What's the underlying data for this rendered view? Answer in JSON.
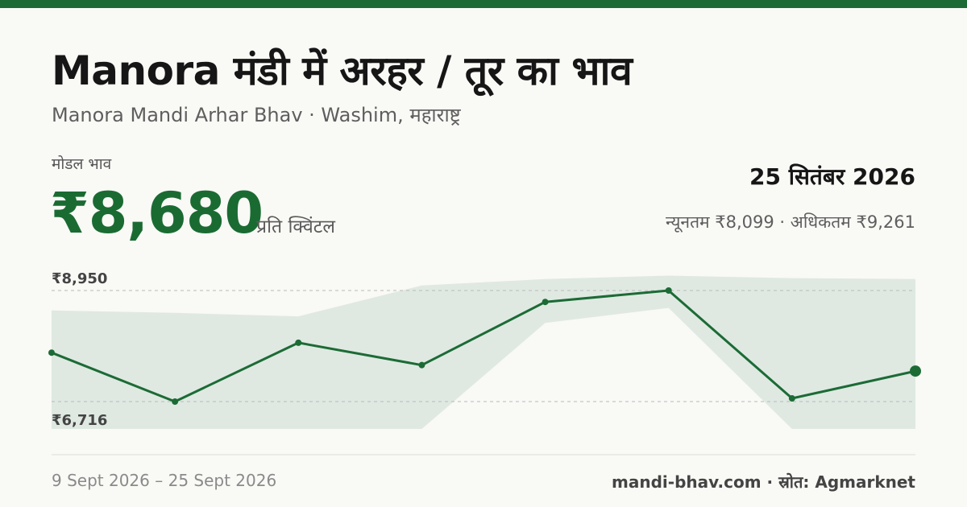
{
  "colors": {
    "accent": "#1c6b35",
    "band": "#dfe9e2",
    "text": "#161616",
    "muted": "#5e5e5e"
  },
  "header": {
    "title": "Manora मंडी में अरहर / तूर का भाव",
    "subtitle": "Manora Mandi Arhar Bhav · Washim, महाराष्ट्र"
  },
  "summary": {
    "modal_label": "मोडल भाव",
    "modal_price": "₹8,680",
    "unit": "प्रति क्विंटल",
    "date": "25 सितंबर 2026",
    "range_text": "न्यूनतम ₹8,099 · अधिकतम ₹9,261"
  },
  "chart_data": {
    "type": "line",
    "y_reference_labels": [
      {
        "value": 8950,
        "label": "₹8,950"
      },
      {
        "value": 6716,
        "label": "₹6,716"
      }
    ],
    "ylim": [
      6140,
      9350
    ],
    "series": [
      {
        "name": "मोडल भाव",
        "values": [
          7700,
          6716,
          7900,
          7450,
          8720,
          8950,
          6780,
          7330
        ]
      },
      {
        "name": "अधिकतम",
        "values": [
          8550,
          8500,
          8430,
          9050,
          9180,
          9250,
          9200,
          9180
        ]
      },
      {
        "name": "न्यूनतम",
        "values": [
          6140,
          6140,
          6140,
          6140,
          8300,
          8600,
          6140,
          6140
        ]
      }
    ]
  },
  "footer": {
    "date_range": "9 Sept 2026 – 25 Sept 2026",
    "source": "mandi-bhav.com · स्रोत: Agmarknet"
  }
}
